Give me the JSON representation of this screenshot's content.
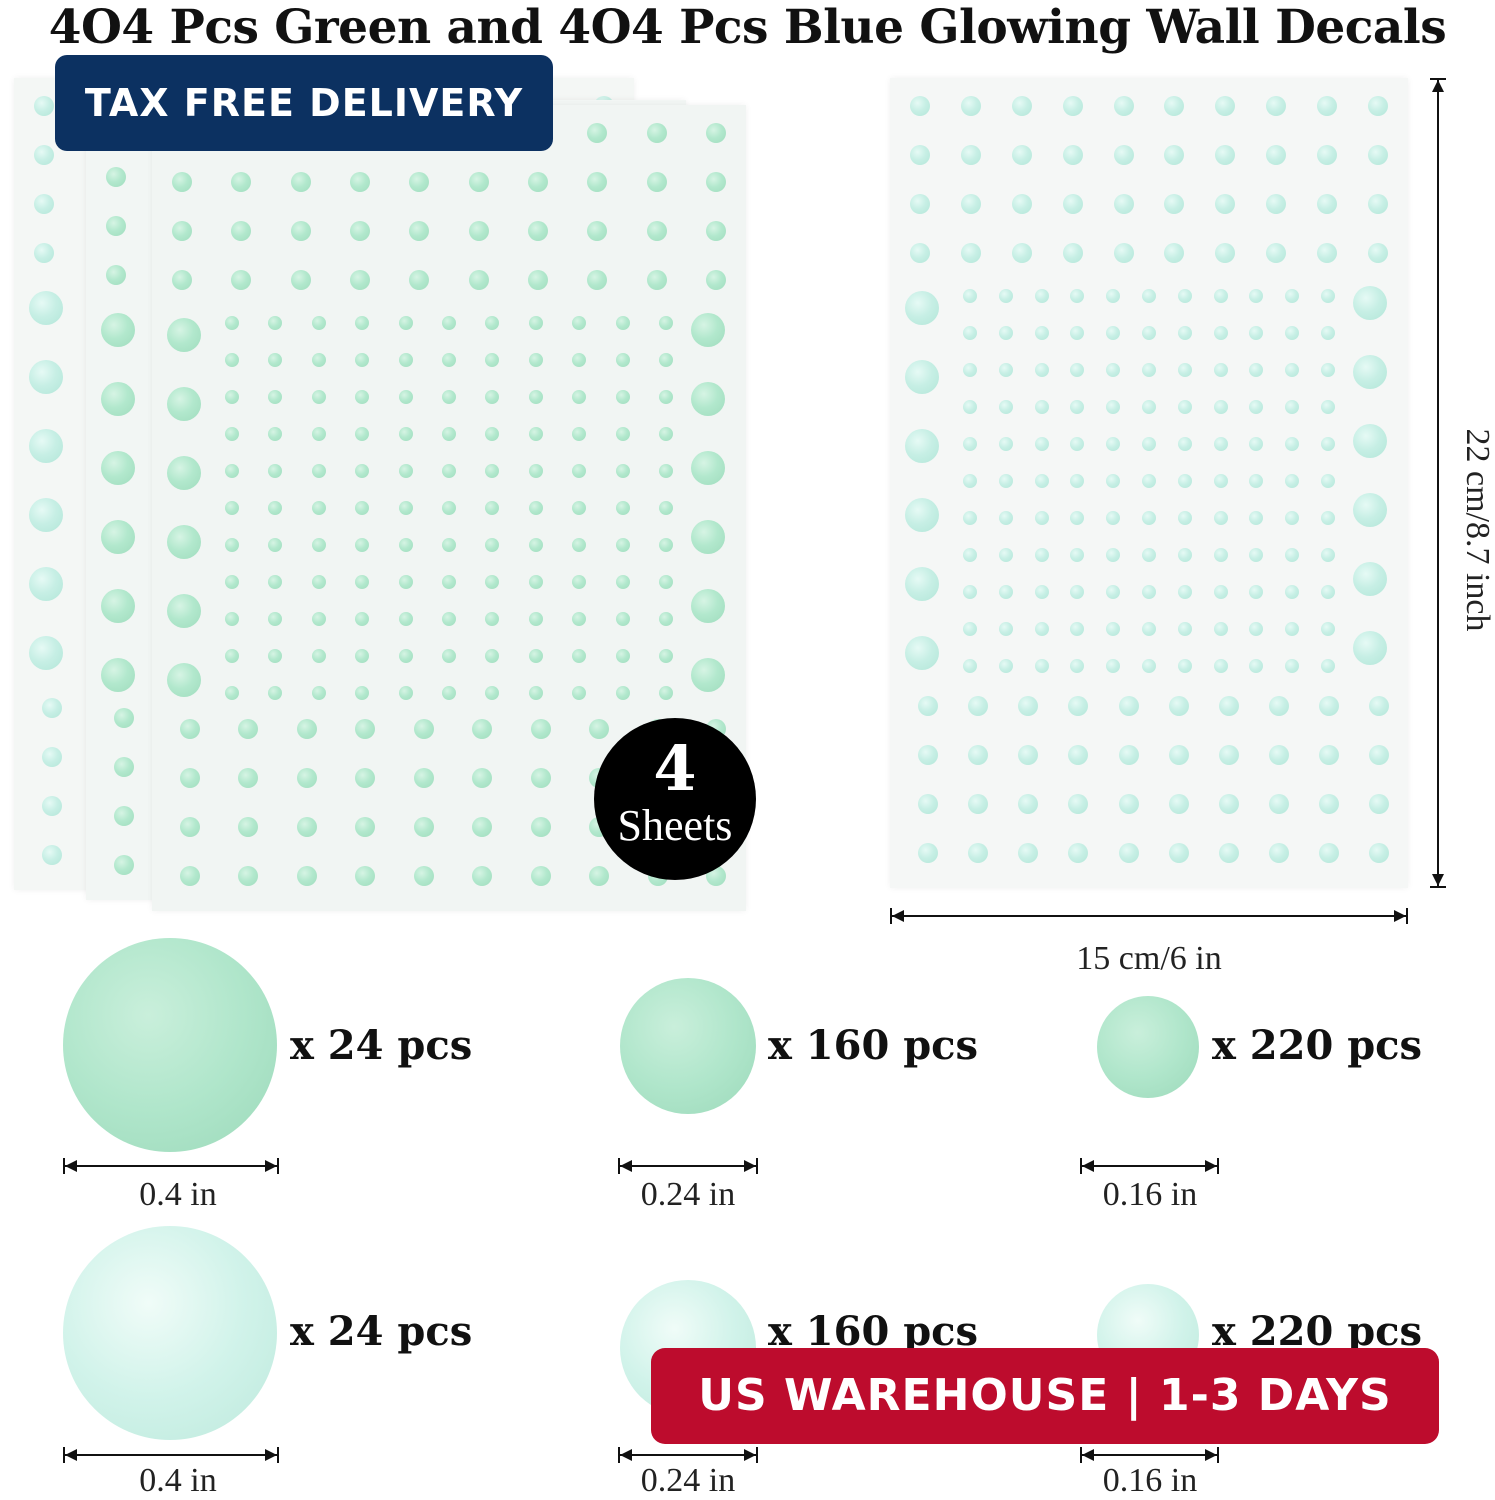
{
  "title": "4O4 Pcs Green and 4O4 Pcs Blue Glowing Wall Decals",
  "badges": {
    "tax_free": "TAX FREE DELIVERY",
    "us_warehouse": "US WAREHOUSE | 1-3 DAYS"
  },
  "sheets": {
    "count": "4",
    "label": "Sheets"
  },
  "dimensions": {
    "width": "15 cm/6 in",
    "height": "22 cm/8.7 inch"
  },
  "sizes": {
    "green": [
      {
        "quantity": "x 24 pcs",
        "diameter": "0.4 in"
      },
      {
        "quantity": "x 160 pcs",
        "diameter": "0.24 in"
      },
      {
        "quantity": "x 220 pcs",
        "diameter": "0.16 in"
      }
    ],
    "blue": [
      {
        "quantity": "x 24 pcs",
        "diameter": "0.4 in"
      },
      {
        "quantity": "x 160 pcs",
        "diameter": "0.24 in"
      },
      {
        "quantity": "x 220 pcs",
        "diameter": "0.16 in"
      }
    ]
  },
  "colors": {
    "green_dot": "#b2e8cd",
    "blue_dot": "#c7efe5",
    "tax_badge": "#0c3161",
    "us_badge": "#bd0c2d"
  }
}
